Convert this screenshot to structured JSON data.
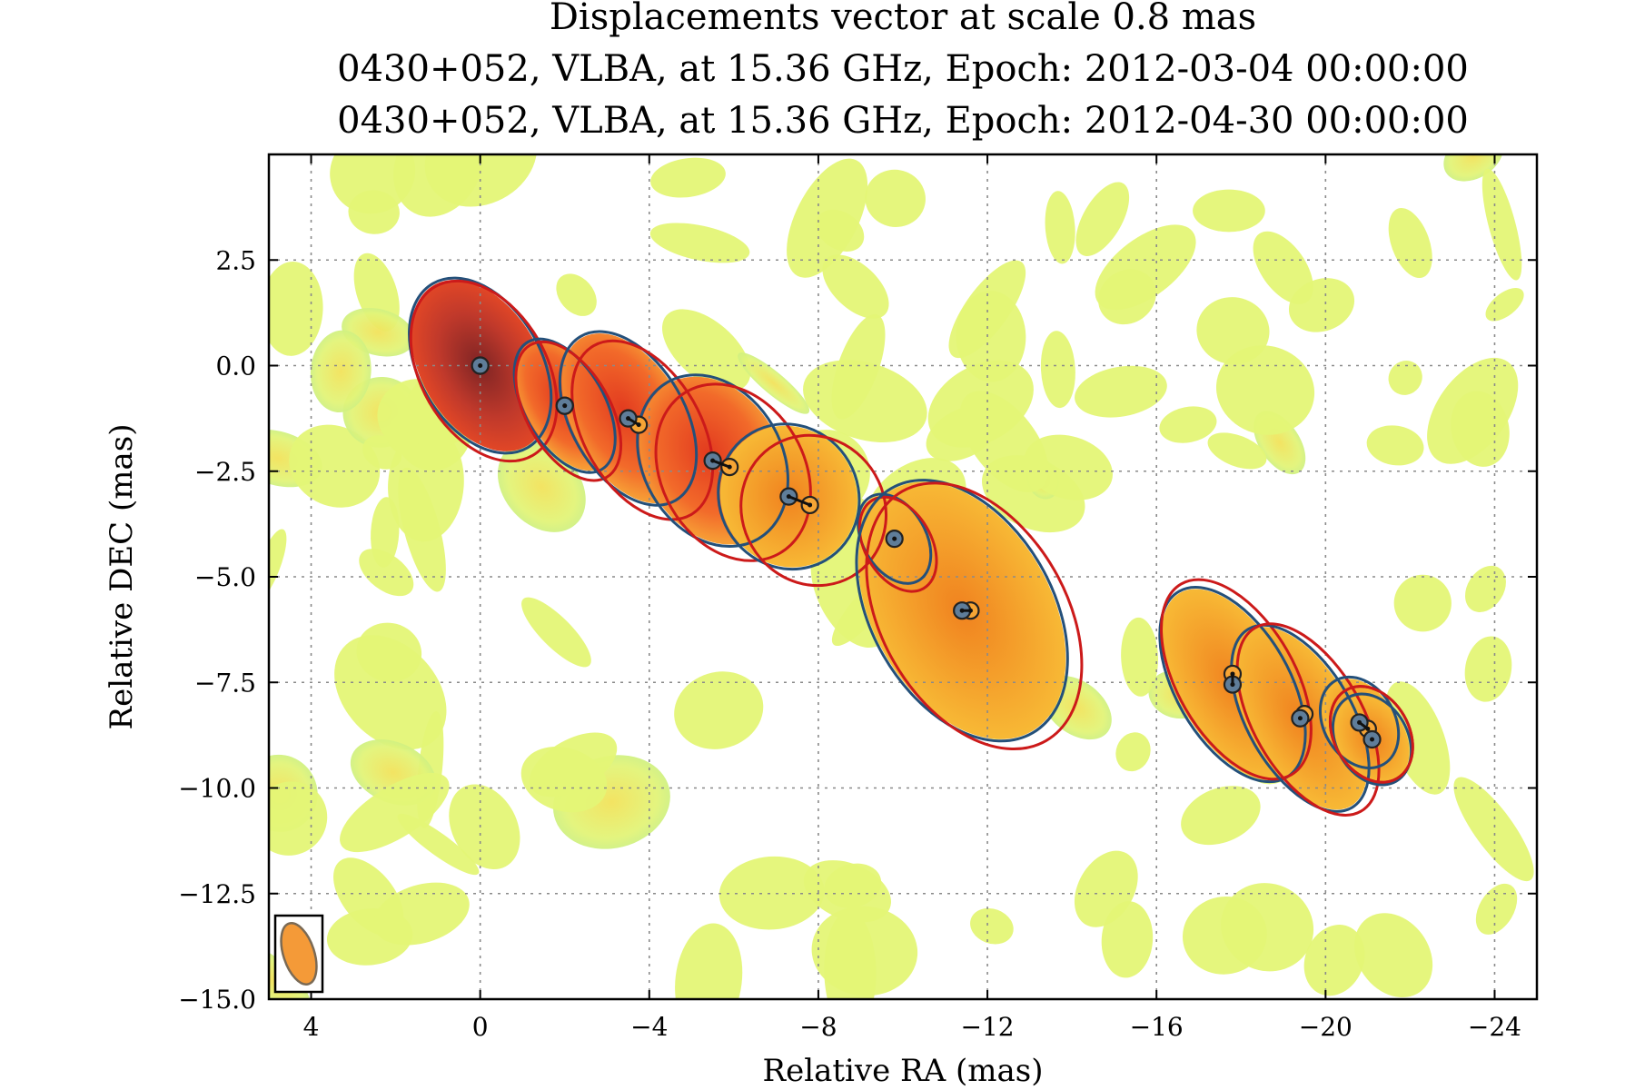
{
  "chart_data": {
    "type": "scatter",
    "title": "Displacements vector at scale 0.8 mas",
    "subtitle_lines": [
      "0430+052, VLBA, at 15.36 GHz, Epoch: 2012-03-04 00:00:00",
      "0430+052, VLBA, at 15.36 GHz, Epoch: 2012-04-30 00:00:00"
    ],
    "xlabel": "Relative RA (mas)",
    "ylabel": "Relative DEC (mas)",
    "xlim": [
      5,
      -25
    ],
    "ylim": [
      -15,
      5
    ],
    "x_ticks": [
      4,
      0,
      -4,
      -8,
      -12,
      -16,
      -20,
      -24
    ],
    "x_tick_labels": [
      "4",
      "0",
      "−4",
      "−8",
      "−12",
      "−16",
      "−20",
      "−24"
    ],
    "y_ticks": [
      2.5,
      0,
      -2.5,
      -5,
      -7.5,
      -10,
      -12.5,
      -15
    ],
    "y_tick_labels": [
      "2.5",
      "0.0",
      "−2.5",
      "−5.0",
      "−7.5",
      "−10.0",
      "−12.5",
      "−15.0"
    ],
    "grid": true,
    "colors": {
      "epoch1_contour": "#24507a",
      "epoch2_contour": "#cc1a1a",
      "epoch1_marker": "#5f7d99",
      "epoch2_marker": "#f6a535",
      "beam": "#f49a38",
      "background_noise": "#e4f576",
      "emission_core": "#8a2a2a"
    },
    "series": [
      {
        "points": [
          {
            "x": 0.0,
            "y": 0.0
          },
          {
            "x": -2.0,
            "y": -0.95
          },
          {
            "x": -3.5,
            "y": -1.25
          },
          {
            "x": -5.5,
            "y": -2.25
          },
          {
            "x": -7.3,
            "y": -3.1
          },
          {
            "x": -9.8,
            "y": -4.1
          },
          {
            "x": -11.4,
            "y": -5.8
          },
          {
            "x": -17.8,
            "y": -7.55
          },
          {
            "x": -19.4,
            "y": -8.35
          },
          {
            "x": -20.8,
            "y": -8.45
          },
          {
            "x": -21.1,
            "y": -8.85
          }
        ]
      },
      {
        "points": [
          {
            "x": 0.0,
            "y": 0.0
          },
          {
            "x": -2.0,
            "y": -0.95
          },
          {
            "x": -3.75,
            "y": -1.4
          },
          {
            "x": -5.9,
            "y": -2.4
          },
          {
            "x": -7.8,
            "y": -3.3
          },
          {
            "x": -11.6,
            "y": -5.8
          },
          {
            "x": -17.8,
            "y": -7.3
          },
          {
            "x": -19.5,
            "y": -8.25
          },
          {
            "x": -21.0,
            "y": -8.6
          }
        ]
      }
    ],
    "displacements": [
      {
        "from": [
          -3.5,
          -1.25
        ],
        "to": [
          -3.75,
          -1.4
        ]
      },
      {
        "from": [
          -5.5,
          -2.25
        ],
        "to": [
          -5.9,
          -2.4
        ]
      },
      {
        "from": [
          -7.3,
          -3.1
        ],
        "to": [
          -7.8,
          -3.3
        ]
      },
      {
        "from": [
          -11.4,
          -5.8
        ],
        "to": [
          -11.6,
          -5.8
        ]
      },
      {
        "from": [
          -17.8,
          -7.55
        ],
        "to": [
          -17.8,
          -7.3
        ]
      },
      {
        "from": [
          -20.8,
          -8.45
        ],
        "to": [
          -21.0,
          -8.6
        ]
      }
    ]
  }
}
